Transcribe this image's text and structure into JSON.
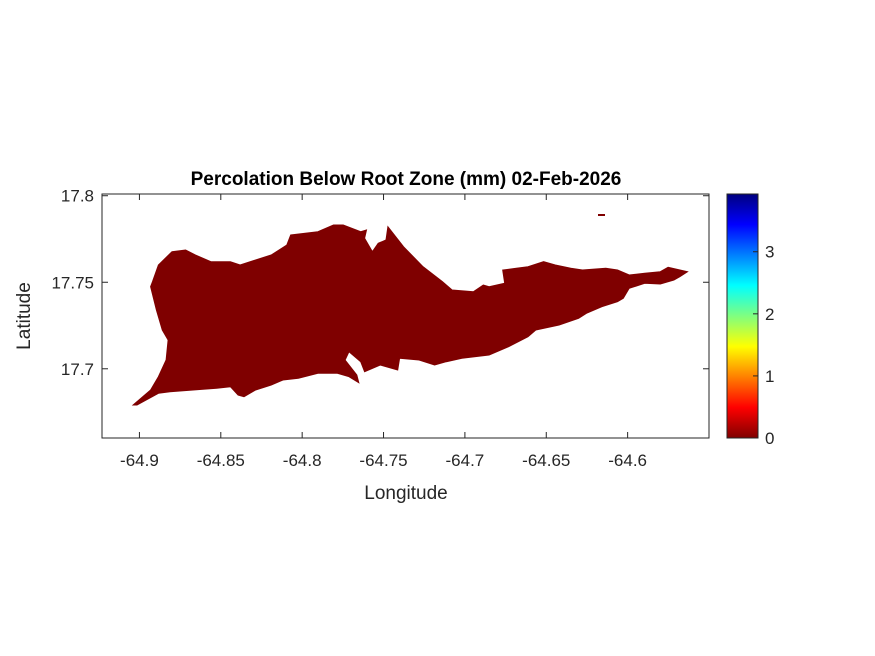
{
  "chart_data": {
    "type": "heatmap",
    "title": "Percolation Below Root Zone (mm) 02-Feb-2026",
    "xlabel": "Longitude",
    "ylabel": "Latitude",
    "xlim": [
      -64.923,
      -64.55
    ],
    "ylim": [
      17.66,
      17.801
    ],
    "xticks": [
      -64.9,
      -64.85,
      -64.8,
      -64.75,
      -64.7,
      -64.65,
      -64.6
    ],
    "xtick_labels": [
      "-64.9",
      "-64.85",
      "-64.8",
      "-64.75",
      "-64.7",
      "-64.65",
      "-64.6"
    ],
    "yticks": [
      17.7,
      17.75,
      17.8
    ],
    "ytick_labels": [
      "17.7",
      "17.75",
      "17.8"
    ],
    "colorbar": {
      "colormap": "jet",
      "clim": [
        0,
        3.93
      ],
      "ticks": [
        0,
        1,
        2,
        3
      ],
      "tick_labels": [
        "0",
        "1",
        "2",
        "3"
      ]
    },
    "field_value_over_land": 0,
    "land_color": "#7f0000",
    "grid": false
  }
}
